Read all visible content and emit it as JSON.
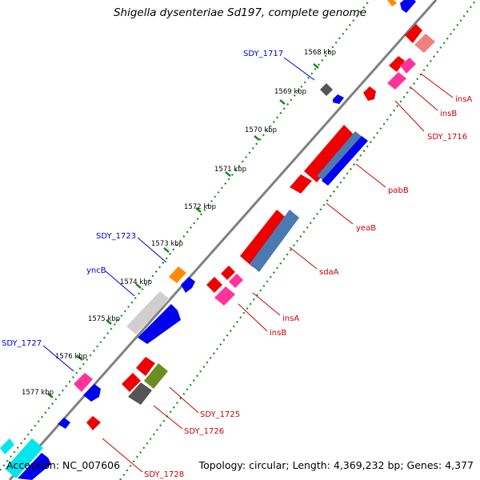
{
  "title": "Shigella dysenteriae Sd197, complete genome",
  "footer": {
    "accession": "Accession: NC_007606",
    "topology": "Topology: circular; Length: 4,369,232 bp; Genes: 4,377"
  },
  "ticks": [
    {
      "label": "1568 kbp"
    },
    {
      "label": "1569 kbp"
    },
    {
      "label": "1570 kbp"
    },
    {
      "label": "1571 kbp"
    },
    {
      "label": "1572 kbp"
    },
    {
      "label": "1573 kbp"
    },
    {
      "label": "1574 kbp"
    },
    {
      "label": "1575 kbp"
    },
    {
      "label": "1576 kbp"
    },
    {
      "label": "1577 kbp"
    }
  ],
  "gene_labels": [
    {
      "text": "SDY_1717",
      "color": "#0000cc"
    },
    {
      "text": "insA",
      "color": "#cc0000"
    },
    {
      "text": "insB",
      "color": "#cc0000"
    },
    {
      "text": "SDY_1716",
      "color": "#cc0000"
    },
    {
      "text": "pabB",
      "color": "#cc0000"
    },
    {
      "text": "yeaB",
      "color": "#cc0000"
    },
    {
      "text": "SDY_1723",
      "color": "#0000cc"
    },
    {
      "text": "yncB",
      "color": "#0000cc"
    },
    {
      "text": "sdaA",
      "color": "#cc0000"
    },
    {
      "text": "insA",
      "color": "#cc0000"
    },
    {
      "text": "insB",
      "color": "#cc0000"
    },
    {
      "text": "SDY_1727",
      "color": "#0000cc"
    },
    {
      "text": "SDY_1725",
      "color": "#cc0000"
    },
    {
      "text": "SDY_1726",
      "color": "#cc0000"
    },
    {
      "text": "SDY_1728",
      "color": "#cc0000"
    }
  ]
}
